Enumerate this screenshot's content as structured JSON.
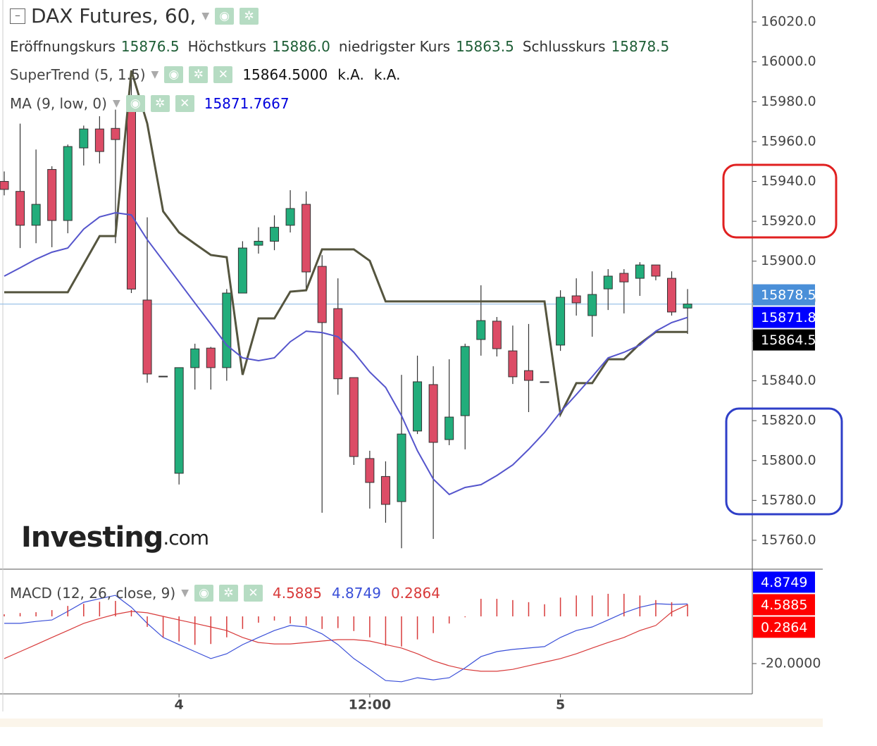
{
  "chart_data": [
    {
      "type": "candlestick",
      "title": "DAX Futures, 60,",
      "categories": [
        null,
        null,
        null,
        null,
        null,
        null,
        null,
        null,
        null,
        null,
        null,
        "4",
        null,
        null,
        null,
        null,
        null,
        null,
        null,
        null,
        null,
        null,
        null,
        "12:00",
        null,
        null,
        null,
        null,
        null,
        null,
        null,
        null,
        null,
        null,
        null,
        "5",
        null,
        null,
        null,
        null,
        null,
        null,
        null,
        null
      ],
      "open": [
        15940,
        15935,
        15918,
        15946,
        15920.4,
        15956.8,
        15966.3,
        15966.6,
        15976,
        15880.5,
        15842.3,
        15793.6,
        15846.6,
        15856.4,
        15846.6,
        15884,
        15908,
        15910,
        15918,
        15928.5,
        15897.4,
        15876.2,
        15841.6,
        15801,
        15792,
        15779.4,
        15814.8,
        15838.1,
        15810.5,
        15822.5,
        15860.7,
        15869.9,
        15855,
        15845.1,
        15839.5,
        15857.9,
        15882.6,
        15872.7,
        15886.1,
        15893.9,
        15891.4,
        15898.1,
        15891.4,
        15876.5
      ],
      "high": [
        15945,
        15969,
        15956,
        15947.6,
        15958.5,
        15968,
        15972.7,
        15976,
        15995.6,
        15922,
        15842.3,
        15846.6,
        15858.6,
        15857,
        15886,
        15910,
        15917,
        15923,
        15935.6,
        15935,
        15903,
        15891.4,
        15841.6,
        15804.9,
        15799.6,
        15843,
        15852.6,
        15847.3,
        15850.8,
        15858.6,
        15887.9,
        15872,
        15867.7,
        15868.5,
        15839.5,
        15885.4,
        15891.4,
        15894.9,
        15896,
        15896,
        15899.5,
        15898.1,
        15894.9,
        15886
      ],
      "low": [
        15933,
        15906.6,
        15909,
        15907,
        15914,
        15948,
        15949,
        15909,
        15884,
        15839,
        15842.3,
        15788,
        15835.6,
        15835.6,
        15840,
        15884,
        15903.8,
        15905.5,
        15914.4,
        15886,
        15773.8,
        15833,
        15797.8,
        15775.9,
        15768.8,
        15756,
        15813.3,
        15760.7,
        15807.7,
        15805.6,
        15852.6,
        15852.2,
        15838.4,
        15824.3,
        15839.5,
        15855,
        15872.7,
        15862.1,
        15875.5,
        15873.8,
        15882.6,
        15890.4,
        15872.7,
        15863.5
      ],
      "close": [
        15936,
        15918,
        15928.5,
        15920.4,
        15957.5,
        15966.3,
        15955,
        15961,
        15886,
        15843.4,
        15842.3,
        15846.6,
        15856,
        15846.6,
        15884,
        15906.6,
        15910,
        15917,
        15926.4,
        15894.6,
        15869.2,
        15841,
        15802,
        15789,
        15778,
        15813.3,
        15839.5,
        15809.1,
        15821.8,
        15857.2,
        15870.2,
        15856.1,
        15842,
        15840.2,
        15839.5,
        15881.9,
        15879.1,
        15883.3,
        15892.5,
        15889.6,
        15898.1,
        15892.5,
        15874.5,
        15878.5
      ],
      "up_color": "#22ad7b",
      "down_color": "#dc4c66",
      "ohlc_legend": [
        {
          "label": "Eröffnungskurs",
          "value": "15876.5"
        },
        {
          "label": "Höchstkurs",
          "value": "15886.0"
        },
        {
          "label": "niedrigster Kurs",
          "value": "15863.5"
        },
        {
          "label": "Schlusskurs",
          "value": "15878.5"
        }
      ],
      "series": [
        {
          "name": "SuperTrend (5, 1.5)",
          "color": "#55553f",
          "legend_values": [
            "15864.5000",
            "k.A.",
            "k.A."
          ],
          "legend_color": "#111111",
          "values": [
            15884.4,
            15884.4,
            15884.4,
            15884.4,
            15884.4,
            15898.5,
            15912.6,
            15912.6,
            15995.6,
            15969.1,
            15925,
            15914.4,
            15908.7,
            15903.1,
            15902,
            15843,
            15871.3,
            15871.3,
            15884.7,
            15885.4,
            15905.9,
            15905.9,
            15905.9,
            15900.2,
            15879.8,
            15879.8,
            15879.8,
            15879.8,
            15879.8,
            15879.8,
            15879.8,
            15879.8,
            15879.8,
            15879.8,
            15879.8,
            15823.2,
            15838.8,
            15838.8,
            15850.8,
            15850.8,
            15858.6,
            15864.5,
            15864.5,
            15864.5
          ]
        },
        {
          "name": "MA (9, low, 0)",
          "color": "#5555cc",
          "legend_values": [
            "15871.7667"
          ],
          "legend_color": "#0000dd",
          "values": [
            15892.5,
            15896.7,
            15901,
            15904.5,
            15906.6,
            15916.1,
            15922.2,
            15924.3,
            15923.2,
            15910.8,
            15900.2,
            15889.6,
            15879,
            15868.5,
            15857.9,
            15851.5,
            15850.1,
            15851.5,
            15859.6,
            15864.9,
            15864.2,
            15862.1,
            15854.3,
            15844.4,
            15836.7,
            15822.5,
            15804.9,
            15790.7,
            15783,
            15786.5,
            15787.9,
            15792.5,
            15797.8,
            15805.6,
            15814.1,
            15824.3,
            15833.1,
            15842.1,
            15851.5,
            15854.3,
            15857.9,
            15864.9,
            15869.2,
            15871.7667
          ]
        }
      ],
      "price_tags": [
        {
          "value": 15878.5,
          "label": "15878.5",
          "color": "#4a8fd8"
        },
        {
          "value": 15871.8,
          "label": "15871.8",
          "color": "#0000ff"
        },
        {
          "value": 15864.5,
          "label": "15864.5",
          "color": "#000000"
        }
      ],
      "ylim": [
        15745.5,
        16031
      ],
      "yticks": [
        {
          "value": 15760,
          "label": "15760.0"
        },
        {
          "value": 15780,
          "label": "15780.0"
        },
        {
          "value": 15800,
          "label": "15800.0"
        },
        {
          "value": 15820,
          "label": "15820.0"
        },
        {
          "value": 15840,
          "label": "15840.0"
        },
        {
          "value": 15860,
          "label": "15860.0"
        },
        {
          "value": 15880,
          "label": "15880.0"
        },
        {
          "value": 15900,
          "label": "15900.0"
        },
        {
          "value": 15920,
          "label": "15920.0"
        },
        {
          "value": 15940,
          "label": "15940.0"
        },
        {
          "value": 15960,
          "label": "15960.0"
        },
        {
          "value": 15980,
          "label": "15980.0"
        },
        {
          "value": 16000,
          "label": "16000.0"
        },
        {
          "value": 16020,
          "label": "16020.0"
        }
      ],
      "watermark": [
        "Investing",
        ".com"
      ]
    },
    {
      "type": "line",
      "title": "MACD (12, 26, close, 9)",
      "series": [
        {
          "color": "#d83a3a",
          "legend_value": "4.5885",
          "values": [
            -17.9,
            -15,
            -12.1,
            -9.1,
            -6.2,
            -3.2,
            -1.2,
            0.6,
            1.8,
            1.2,
            -0.3,
            -1.8,
            -3.2,
            -4.7,
            -6.2,
            -9.1,
            -11.2,
            -11.8,
            -11.8,
            -11.2,
            -10.6,
            -10,
            -10,
            -10.6,
            -12.1,
            -13.5,
            -15.9,
            -18.8,
            -20.9,
            -22.4,
            -23.2,
            -23.2,
            -22.4,
            -20.9,
            -19.4,
            -17.9,
            -15.9,
            -13.5,
            -11.2,
            -9.1,
            -6.2,
            -4.1,
            1.5,
            4.5885
          ]
        },
        {
          "color": "#3a4fd8",
          "legend_value": "4.8749",
          "values": [
            -3.2,
            -3.2,
            -2.4,
            -1.8,
            1.8,
            5.6,
            7.1,
            8.5,
            3.5,
            -3.2,
            -9.1,
            -12.1,
            -15,
            -17.9,
            -15.9,
            -12.1,
            -9.1,
            -6.2,
            -4.1,
            -4.7,
            -7.6,
            -12.1,
            -17.9,
            -22.4,
            -27.1,
            -27.6,
            -25.9,
            -26.8,
            -25.9,
            -21.8,
            -17.1,
            -15,
            -14.1,
            -13.5,
            -12.9,
            -9.1,
            -6.2,
            -4.7,
            -1.8,
            1.2,
            3.5,
            5,
            4.7,
            4.8749
          ]
        },
        {
          "type": "histogram",
          "color": "#d83a3a",
          "legend_value": "0.2864",
          "ylim": [
            -1.852,
            1.061
          ],
          "values": [
            0.05,
            0.08,
            0.1,
            0.15,
            0.25,
            0.3,
            0.35,
            0.37,
            0.15,
            -0.25,
            -0.5,
            -0.6,
            -0.68,
            -0.66,
            -0.5,
            -0.3,
            -0.15,
            -0.1,
            -0.17,
            -0.22,
            -0.3,
            -0.28,
            -0.35,
            -0.5,
            -0.7,
            -0.72,
            -0.55,
            -0.4,
            -0.17,
            -0.02,
            0.42,
            0.42,
            0.39,
            0.34,
            0.29,
            0.45,
            0.5,
            0.5,
            0.54,
            0.54,
            0.5,
            0.39,
            0.34,
            0.2864
          ]
        }
      ],
      "tags": [
        {
          "value": 4.8749,
          "label": "4.8749",
          "color": "#0000ff"
        },
        {
          "value": 4.5885,
          "label": "4.5885",
          "color": "#ff0000"
        },
        {
          "value": 0.2864,
          "label": "0.2864",
          "color": "#ff0000"
        }
      ],
      "ylim": [
        -32.65,
        18.24
      ],
      "yticks": [
        {
          "value": -20,
          "label": "-20.0000"
        }
      ]
    }
  ]
}
